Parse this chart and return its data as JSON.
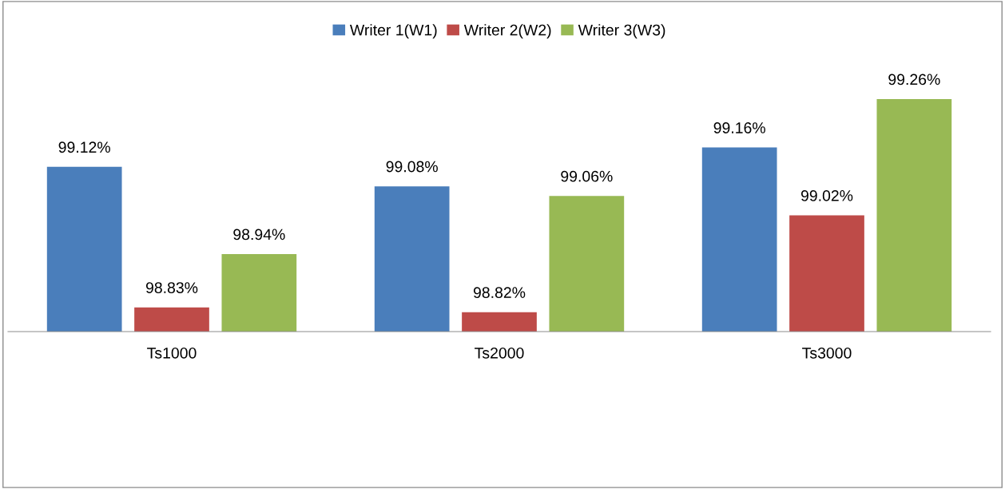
{
  "chart_data": {
    "type": "bar",
    "categories": [
      "Ts1000",
      "Ts2000",
      "Ts3000"
    ],
    "series": [
      {
        "name": "Writer 1(W1)",
        "color": "#4a7ebb",
        "values": [
          99.12,
          99.08,
          99.16
        ],
        "value_labels": [
          "99.12%",
          "99.08%",
          "99.16%"
        ]
      },
      {
        "name": "Writer 2(W2)",
        "color": "#be4b48",
        "values": [
          98.83,
          98.82,
          99.02
        ],
        "value_labels": [
          "98.83%",
          "98.82%",
          "99.02%"
        ]
      },
      {
        "name": "Writer 3(W3)",
        "color": "#98b954",
        "values": [
          98.94,
          99.06,
          99.26
        ],
        "value_labels": [
          "98.94%",
          "99.06%",
          "99.26%"
        ]
      }
    ],
    "ylim": [
      98.78,
      99.26
    ],
    "tick_labels": "x",
    "legend": "top",
    "grid": false
  }
}
